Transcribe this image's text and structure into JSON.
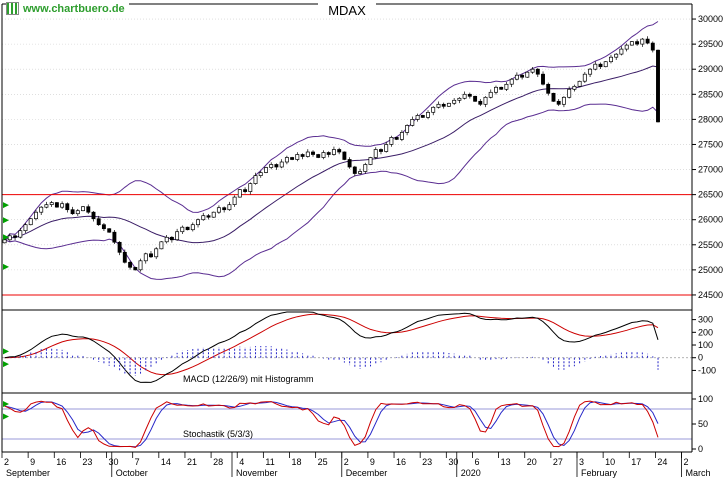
{
  "title": "MDAX",
  "watermark": "www.chartbuero.de",
  "panels": {
    "macd_label": "MACD (12/26/9) mit Histogramm",
    "stoch_label": "Stochastik (5/3/3)"
  },
  "colors": {
    "up_candle": "#ffffff",
    "down_candle": "#000000",
    "candle_stroke": "#000000",
    "bollinger": "#5a2d91",
    "bollinger_mid": "#3a1d66",
    "support": "#ee0000",
    "grid": "#cccccc",
    "macd_line": "#000000",
    "signal_line": "#cc0000",
    "histogram": "#2727c8",
    "stoch_k": "#cc0000",
    "stoch_d": "#2727c8",
    "stoch_ref": "#7777cc",
    "marker": "#00a000",
    "watermark": "#2e9e2e",
    "border": "#000000",
    "axis_text": "#000000"
  },
  "chart_data": {
    "type": "candlestick",
    "title": "MDAX",
    "ylim_main": [
      24200,
      30300
    ],
    "y_ticks_main": [
      30000,
      29500,
      29000,
      28500,
      28000,
      27500,
      27000,
      26500,
      26000,
      25500,
      25000,
      24500
    ],
    "support_lines": [
      26500,
      24500
    ],
    "ylim_macd": [
      -270,
      360
    ],
    "y_ticks_macd": [
      300,
      200,
      100,
      0,
      -100
    ],
    "ylim_stoch": [
      -6,
      110
    ],
    "y_ticks_stoch": [
      100,
      50,
      0
    ],
    "stoch_ref_lines": [
      80,
      20
    ],
    "indicator_params": {
      "bollinger": "20,2",
      "macd": "12/26/9",
      "stochastic": "5/3/3"
    },
    "x_week_labels": [
      "2",
      "9",
      "16",
      "23",
      "30",
      "7",
      "14",
      "21",
      "28",
      "4",
      "11",
      "18",
      "25",
      "2",
      "9",
      "16",
      "23",
      "30",
      "6",
      "13",
      "20",
      "27",
      "3",
      "10",
      "17",
      "24",
      "2"
    ],
    "months": [
      {
        "label": "September",
        "index": 0
      },
      {
        "label": "October",
        "index": 21
      },
      {
        "label": "November",
        "index": 44
      },
      {
        "label": "December",
        "index": 65
      },
      {
        "label": "2020",
        "index": 87
      },
      {
        "label": "February",
        "index": 110
      },
      {
        "label": "March",
        "index": 130
      }
    ],
    "timeline_days": 132,
    "closes": [
      25600,
      25680,
      25650,
      25780,
      25900,
      26020,
      26150,
      26250,
      26300,
      26340,
      26250,
      26320,
      26200,
      26120,
      26180,
      26260,
      26150,
      26020,
      25900,
      25820,
      25750,
      25550,
      25350,
      25150,
      25050,
      25000,
      25180,
      25320,
      25260,
      25420,
      25560,
      25650,
      25600,
      25760,
      25850,
      25800,
      25900,
      26000,
      26080,
      26050,
      26150,
      26240,
      26200,
      26300,
      26450,
      26600,
      26560,
      26720,
      26880,
      26940,
      27040,
      27100,
      27050,
      27150,
      27240,
      27200,
      27300,
      27260,
      27350,
      27300,
      27240,
      27340,
      27300,
      27400,
      27350,
      27200,
      27050,
      26920,
      26960,
      27100,
      27240,
      27400,
      27360,
      27500,
      27640,
      27600,
      27740,
      27880,
      28000,
      28080,
      28040,
      28140,
      28240,
      28300,
      28260,
      28320,
      28380,
      28420,
      28500,
      28460,
      28360,
      28300,
      28440,
      28540,
      28640,
      28600,
      28700,
      28800,
      28880,
      28840,
      28940,
      29000,
      28900,
      28700,
      28520,
      28360,
      28300,
      28440,
      28600,
      28660,
      28760,
      28900,
      29000,
      29100,
      29050,
      29150,
      29240,
      29300,
      29400,
      29480,
      29550,
      29500,
      29600,
      29520,
      29380,
      27950
    ],
    "left_markers": {
      "main": [
        26290,
        25990,
        25650,
        25060
      ],
      "macd": [
        50,
        -50
      ],
      "stoch": [
        90,
        65
      ]
    }
  }
}
